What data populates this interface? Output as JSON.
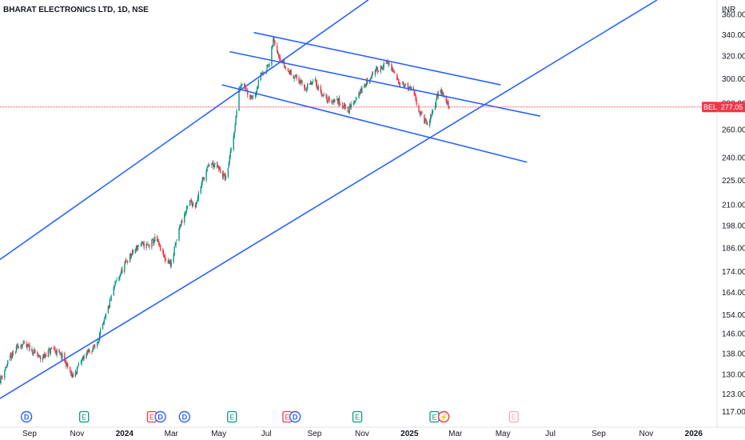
{
  "header": {
    "title": "BHARAT ELECTRONICS LTD, 1D, NSE",
    "currency": "INR"
  },
  "price_tag": {
    "symbol": "BEL",
    "value": "277.05"
  },
  "colors": {
    "up": "#089981",
    "down": "#f23645",
    "trendline": "#2962ff",
    "axis_text": "#131722",
    "price_line": "#f23645"
  },
  "events": [
    {
      "type": "D",
      "date": "2023-08-28"
    },
    {
      "type": "E",
      "date": "2023-11-10"
    },
    {
      "type": "E",
      "date": "2024-02-05"
    },
    {
      "type": "D",
      "date": "2024-02-16"
    },
    {
      "type": "D",
      "date": "2024-03-18"
    },
    {
      "type": "E",
      "date": "2024-05-18"
    },
    {
      "type": "E",
      "date": "2024-07-28"
    },
    {
      "type": "D",
      "date": "2024-08-07"
    },
    {
      "type": "E",
      "date": "2024-10-26"
    },
    {
      "type": "E",
      "date": "2025-02-02"
    },
    {
      "type": "F",
      "date": "2025-02-14"
    },
    {
      "type": "E",
      "date": "2025-05-15"
    }
  ],
  "chart_data": {
    "type": "candlestick",
    "title": "BHARAT ELECTRONICS LTD, 1D, NSE",
    "y_scale": "log",
    "ylim": [
      112,
      375
    ],
    "xlim": [
      "2023-07-25",
      "2026-01-31"
    ],
    "x_ticks": [
      {
        "label": "Sep",
        "date": "2023-09-01",
        "bold": false
      },
      {
        "label": "Nov",
        "date": "2023-11-01",
        "bold": false
      },
      {
        "label": "2024",
        "date": "2024-01-01",
        "bold": true
      },
      {
        "label": "Mar",
        "date": "2024-03-01",
        "bold": false
      },
      {
        "label": "May",
        "date": "2024-05-01",
        "bold": false
      },
      {
        "label": "Jul",
        "date": "2024-07-01",
        "bold": false
      },
      {
        "label": "Sep",
        "date": "2024-09-01",
        "bold": false
      },
      {
        "label": "Nov",
        "date": "2024-11-01",
        "bold": false
      },
      {
        "label": "2025",
        "date": "2025-01-01",
        "bold": true
      },
      {
        "label": "Mar",
        "date": "2025-03-01",
        "bold": false
      },
      {
        "label": "May",
        "date": "2025-05-01",
        "bold": false
      },
      {
        "label": "Jul",
        "date": "2025-07-01",
        "bold": false
      },
      {
        "label": "Sep",
        "date": "2025-09-01",
        "bold": false
      },
      {
        "label": "Nov",
        "date": "2025-11-01",
        "bold": false
      },
      {
        "label": "2026",
        "date": "2026-01-01",
        "bold": true
      }
    ],
    "y_ticks": [
      117,
      123,
      130,
      138,
      146,
      154,
      164,
      174,
      186,
      198,
      210,
      225,
      240,
      260,
      280,
      300,
      320,
      340,
      360
    ],
    "last_price": 277.05,
    "price_path": [
      [
        "2023-07-25",
        128
      ],
      [
        "2023-08-05",
        135
      ],
      [
        "2023-08-20",
        142
      ],
      [
        "2023-09-01",
        140
      ],
      [
        "2023-09-15",
        136
      ],
      [
        "2023-10-01",
        140
      ],
      [
        "2023-10-15",
        136
      ],
      [
        "2023-10-26",
        129
      ],
      [
        "2023-11-10",
        137
      ],
      [
        "2023-11-25",
        141
      ],
      [
        "2023-12-05",
        150
      ],
      [
        "2023-12-20",
        168
      ],
      [
        "2024-01-05",
        180
      ],
      [
        "2024-01-20",
        188
      ],
      [
        "2024-02-01",
        187
      ],
      [
        "2024-02-10",
        191
      ],
      [
        "2024-02-22",
        180
      ],
      [
        "2024-03-01",
        178
      ],
      [
        "2024-03-12",
        198
      ],
      [
        "2024-03-25",
        212
      ],
      [
        "2024-04-01",
        210
      ],
      [
        "2024-04-10",
        225
      ],
      [
        "2024-04-20",
        237
      ],
      [
        "2024-04-30",
        233
      ],
      [
        "2024-05-10",
        226
      ],
      [
        "2024-05-20",
        255
      ],
      [
        "2024-05-27",
        290
      ],
      [
        "2024-06-01",
        300
      ],
      [
        "2024-06-07",
        288
      ],
      [
        "2024-06-15",
        285
      ],
      [
        "2024-06-25",
        305
      ],
      [
        "2024-07-05",
        312
      ],
      [
        "2024-07-10",
        335
      ],
      [
        "2024-07-18",
        320
      ],
      [
        "2024-07-28",
        307
      ],
      [
        "2024-08-06",
        303
      ],
      [
        "2024-08-20",
        292
      ],
      [
        "2024-09-01",
        298
      ],
      [
        "2024-09-15",
        283
      ],
      [
        "2024-10-01",
        282
      ],
      [
        "2024-10-15",
        275
      ],
      [
        "2024-10-25",
        285
      ],
      [
        "2024-11-05",
        295
      ],
      [
        "2024-11-15",
        305
      ],
      [
        "2024-11-25",
        310
      ],
      [
        "2024-12-05",
        314
      ],
      [
        "2024-12-15",
        300
      ],
      [
        "2024-12-25",
        295
      ],
      [
        "2025-01-05",
        290
      ],
      [
        "2025-01-15",
        272
      ],
      [
        "2025-01-25",
        262
      ],
      [
        "2025-02-01",
        276
      ],
      [
        "2025-02-08",
        292
      ],
      [
        "2025-02-15",
        284
      ],
      [
        "2025-02-22",
        277.05
      ]
    ],
    "trendlines": [
      {
        "name": "channel-upper",
        "p1": [
          "2023-07-25",
          180
        ],
        "p2": [
          "2024-11-09",
          375
        ]
      },
      {
        "name": "channel-lower",
        "p1": [
          "2023-07-25",
          121.5
        ],
        "p2": [
          "2025-11-15",
          375
        ]
      },
      {
        "name": "flag-top",
        "p1": [
          "2024-06-15",
          342
        ],
        "p2": [
          "2025-04-28",
          295
        ]
      },
      {
        "name": "flag-middle",
        "p1": [
          "2024-05-15",
          324
        ],
        "p2": [
          "2025-06-18",
          270
        ]
      },
      {
        "name": "flag-bottom",
        "p1": [
          "2024-05-05",
          295
        ],
        "p2": [
          "2025-06-01",
          237
        ]
      }
    ]
  }
}
